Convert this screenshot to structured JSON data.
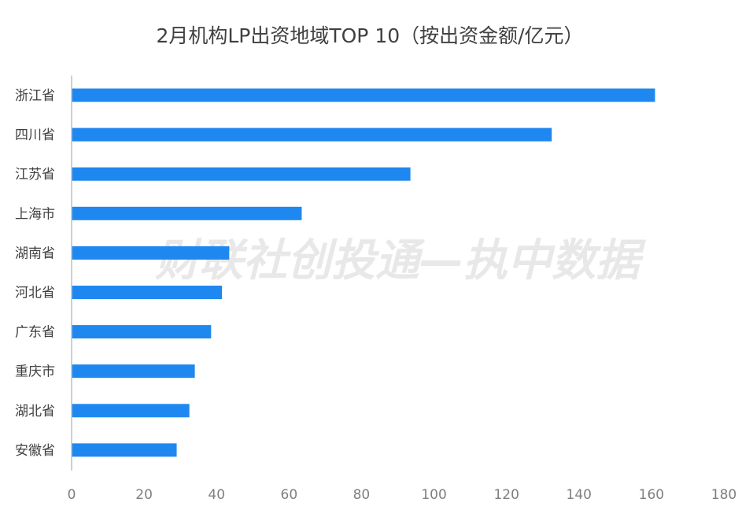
{
  "chart_data": {
    "type": "bar",
    "orientation": "horizontal",
    "title": "2月机构LP出资地域TOP 10（按出资金额/亿元）",
    "categories": [
      "浙江省",
      "四川省",
      "江苏省",
      "上海市",
      "湖南省",
      "河北省",
      "广东省",
      "重庆市",
      "湖北省",
      "安徽省"
    ],
    "values": [
      161,
      132.5,
      93.5,
      63.5,
      43.5,
      41.5,
      38.5,
      34,
      32.5,
      29
    ],
    "xlim": [
      0,
      180
    ],
    "xticks": [
      0,
      20,
      40,
      60,
      80,
      100,
      120,
      140,
      160,
      180
    ],
    "grid": false,
    "bar_color": "#1E88F0",
    "axis_color": "#BFBFBF",
    "watermark": "财联社创投通—执中数据"
  }
}
